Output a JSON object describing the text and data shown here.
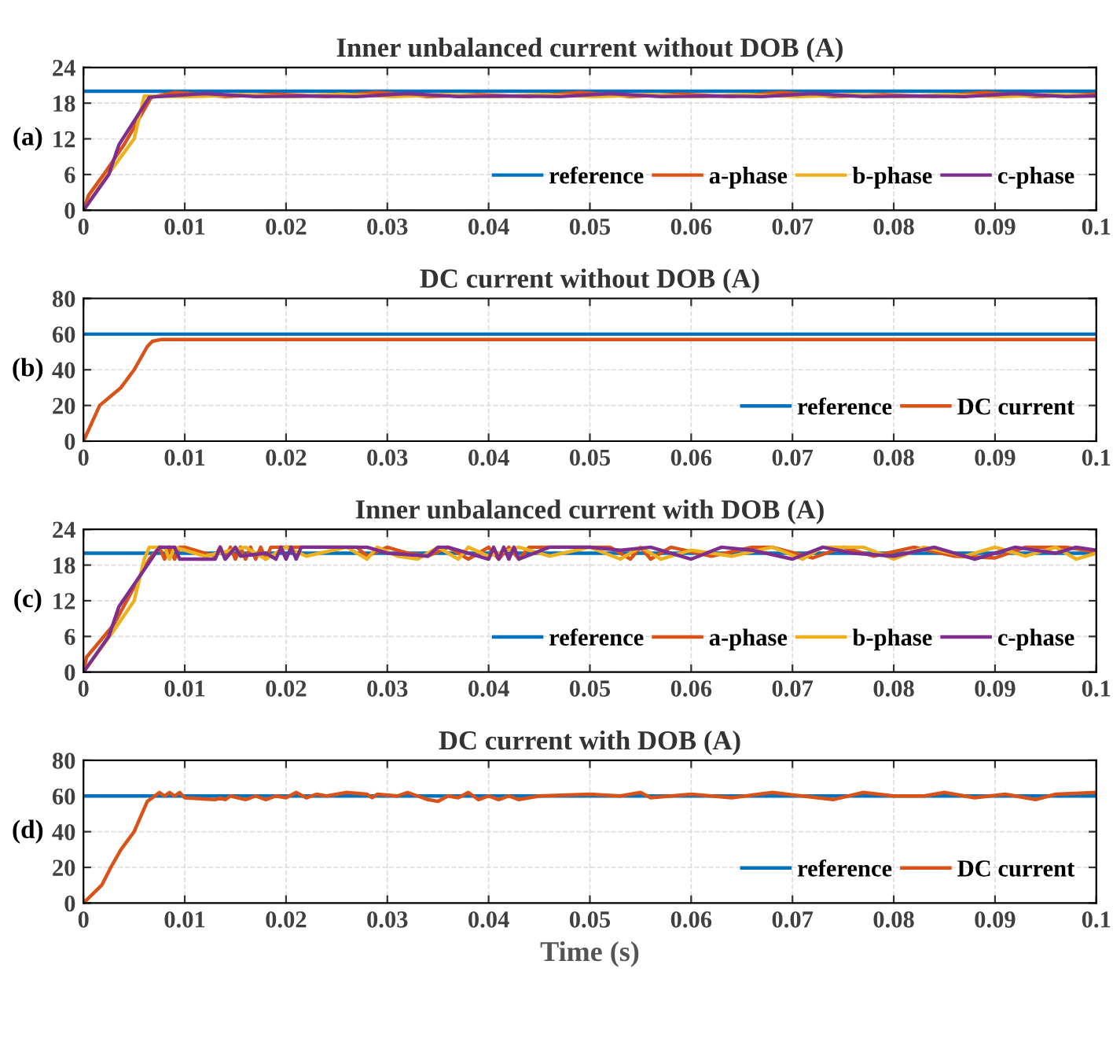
{
  "chart_data": [
    {
      "type": "line",
      "title": "Inner unbalanced current without DOB (A)",
      "annotations": [
        "(a)"
      ],
      "xlim": [
        0,
        0.1
      ],
      "xticks": [
        0,
        0.01,
        0.02,
        0.03,
        0.04,
        0.05,
        0.06,
        0.07,
        0.08,
        0.09,
        0.1
      ],
      "ylim": [
        0,
        24
      ],
      "yticks": [
        0,
        6,
        12,
        18,
        24
      ],
      "grid": true,
      "legend": "bottom right",
      "series": [
        {
          "name": "reference",
          "color": "#0072bd",
          "x": [
            0,
            0.1
          ],
          "values": [
            20,
            20
          ]
        },
        {
          "name": "a-phase",
          "color": "#d95319",
          "x": [
            0,
            0.0005,
            0.002,
            0.004,
            0.0067,
            0.009,
            0.014,
            0.019,
            0.024,
            0.029,
            0.034,
            0.039,
            0.044,
            0.049,
            0.054,
            0.059,
            0.064,
            0.069,
            0.074,
            0.079,
            0.084,
            0.089,
            0.094,
            0.1
          ],
          "values": [
            0,
            2.5,
            6,
            11,
            19,
            19.8,
            19.1,
            19.5,
            19.1,
            19.8,
            19.1,
            19.4,
            19.1,
            19.8,
            19.1,
            19.5,
            19.1,
            19.8,
            19.1,
            19.4,
            19.1,
            19.8,
            19.1,
            19.5
          ]
        },
        {
          "name": "b-phase",
          "color": "#edb120",
          "x": [
            0,
            0.002,
            0.005,
            0.006,
            0.0105,
            0.0155,
            0.0205,
            0.0255,
            0.0305,
            0.0355,
            0.0405,
            0.0455,
            0.0505,
            0.0555,
            0.0605,
            0.0655,
            0.0705,
            0.0755,
            0.0805,
            0.0855,
            0.0905,
            0.0955,
            0.1
          ],
          "values": [
            0,
            5,
            12,
            19.2,
            19.1,
            19.4,
            19.1,
            19.5,
            19.1,
            19.4,
            19.1,
            19.4,
            19.1,
            19.4,
            19.1,
            19.4,
            19.1,
            19.4,
            19.1,
            19.4,
            19.1,
            19.4,
            19.2
          ]
        },
        {
          "name": "c-phase",
          "color": "#7e2f8e",
          "x": [
            0,
            0.0025,
            0.0035,
            0.0065,
            0.012,
            0.017,
            0.022,
            0.027,
            0.032,
            0.037,
            0.042,
            0.047,
            0.052,
            0.057,
            0.062,
            0.067,
            0.072,
            0.077,
            0.082,
            0.087,
            0.092,
            0.097,
            0.1
          ],
          "values": [
            0,
            6,
            11,
            19,
            19.6,
            19.1,
            19.2,
            19.1,
            19.6,
            19.1,
            19.2,
            19.1,
            19.6,
            19.1,
            19.2,
            19.1,
            19.6,
            19.1,
            19.2,
            19.1,
            19.6,
            19.1,
            19.2
          ]
        }
      ]
    },
    {
      "type": "line",
      "title": "DC current without DOB (A)",
      "annotations": [
        "(b)"
      ],
      "xlim": [
        0,
        0.1
      ],
      "xticks": [
        0,
        0.01,
        0.02,
        0.03,
        0.04,
        0.05,
        0.06,
        0.07,
        0.08,
        0.09,
        0.1
      ],
      "ylim": [
        0,
        80
      ],
      "yticks": [
        0,
        20,
        40,
        60,
        80
      ],
      "grid": true,
      "legend": "bottom right",
      "series": [
        {
          "name": "reference",
          "color": "#0072bd",
          "x": [
            0,
            0.1
          ],
          "values": [
            60,
            60
          ]
        },
        {
          "name": "DC current",
          "color": "#d95319",
          "x": [
            0,
            0.0016,
            0.0037,
            0.005,
            0.0063,
            0.0068,
            0.0077,
            0.015,
            0.02,
            0.03,
            0.04,
            0.05,
            0.06,
            0.07,
            0.08,
            0.09,
            0.1
          ],
          "values": [
            0,
            20,
            30,
            40,
            53,
            56,
            57,
            57,
            57,
            57,
            57,
            57,
            57,
            57,
            57,
            57,
            57
          ]
        }
      ]
    },
    {
      "type": "line",
      "title": "Inner unbalanced current with DOB (A)",
      "annotations": [
        "(c)"
      ],
      "xlim": [
        0,
        0.1
      ],
      "xticks": [
        0,
        0.01,
        0.02,
        0.03,
        0.04,
        0.05,
        0.06,
        0.07,
        0.08,
        0.09,
        0.1
      ],
      "ylim": [
        0,
        24
      ],
      "yticks": [
        0,
        6,
        12,
        18,
        24
      ],
      "grid": true,
      "legend": "bottom right",
      "series": [
        {
          "name": "reference",
          "color": "#0072bd",
          "x": [
            0,
            0.1
          ],
          "values": [
            20,
            20
          ]
        },
        {
          "name": "a-phase",
          "color": "#d95319",
          "x": [
            0,
            0.0003,
            0.003,
            0.0065,
            0.0075,
            0.008,
            0.0085,
            0.009,
            0.0095,
            0.01,
            0.013,
            0.0135,
            0.014,
            0.0145,
            0.015,
            0.0155,
            0.016,
            0.0165,
            0.017,
            0.0175,
            0.018,
            0.0185,
            0.02,
            0.021,
            0.025,
            0.027,
            0.028,
            0.03,
            0.032,
            0.034,
            0.036,
            0.038,
            0.04,
            0.041,
            0.042,
            0.043,
            0.044,
            0.048,
            0.052,
            0.054,
            0.055,
            0.056,
            0.058,
            0.062,
            0.066,
            0.068,
            0.072,
            0.075,
            0.078,
            0.082,
            0.086,
            0.09,
            0.093,
            0.097,
            0.1
          ],
          "values": [
            0,
            2.5,
            8,
            19,
            21,
            19,
            21,
            19,
            21,
            21,
            19.5,
            21,
            19,
            21,
            19,
            21,
            19,
            21,
            19,
            21,
            19,
            21,
            21,
            21,
            21,
            21,
            19.5,
            21,
            20,
            19.5,
            21,
            19,
            21,
            19,
            21,
            19,
            21,
            21,
            21,
            19,
            21,
            19,
            21,
            19.5,
            21,
            21,
            19.2,
            21,
            19.5,
            21,
            19.5,
            19.2,
            21,
            21,
            20.2
          ]
        },
        {
          "name": "b-phase",
          "color": "#edb120",
          "x": [
            0,
            0.003,
            0.005,
            0.006,
            0.0065,
            0.008,
            0.0085,
            0.009,
            0.012,
            0.016,
            0.018,
            0.02,
            0.022,
            0.026,
            0.028,
            0.029,
            0.031,
            0.033,
            0.035,
            0.037,
            0.038,
            0.04,
            0.043,
            0.046,
            0.05,
            0.053,
            0.055,
            0.057,
            0.06,
            0.064,
            0.068,
            0.071,
            0.073,
            0.077,
            0.08,
            0.083,
            0.087,
            0.09,
            0.093,
            0.096,
            0.098,
            0.1
          ],
          "values": [
            0,
            7,
            12,
            19,
            21,
            21,
            19,
            21,
            19.5,
            21,
            19,
            21,
            19.5,
            21,
            19,
            21,
            19.5,
            19,
            21,
            19,
            21,
            19.5,
            21,
            19.5,
            21,
            19,
            21,
            19,
            20.5,
            19.5,
            21,
            19,
            21,
            21,
            19,
            21,
            19.5,
            21,
            19.5,
            21,
            19,
            20
          ]
        },
        {
          "name": "c-phase",
          "color": "#7e2f8e",
          "x": [
            0,
            0.0025,
            0.0035,
            0.0075,
            0.009,
            0.0095,
            0.013,
            0.0135,
            0.014,
            0.015,
            0.0155,
            0.018,
            0.019,
            0.0195,
            0.02,
            0.0205,
            0.021,
            0.0215,
            0.022,
            0.023,
            0.026,
            0.028,
            0.03,
            0.034,
            0.035,
            0.036,
            0.04,
            0.0405,
            0.041,
            0.0415,
            0.042,
            0.0425,
            0.043,
            0.046,
            0.05,
            0.053,
            0.056,
            0.06,
            0.063,
            0.066,
            0.07,
            0.073,
            0.076,
            0.08,
            0.084,
            0.088,
            0.092,
            0.096,
            0.098,
            0.1
          ],
          "values": [
            0,
            6,
            11,
            21,
            21,
            19,
            19,
            21,
            19,
            21,
            19.5,
            20,
            19,
            21,
            19,
            21,
            19,
            21,
            21,
            21,
            21,
            21,
            20,
            19.5,
            21,
            21,
            19,
            21,
            19,
            21,
            19,
            21,
            19,
            21,
            21,
            20.5,
            21,
            19,
            21,
            20.5,
            19,
            21,
            20,
            19.5,
            21,
            19,
            21,
            20,
            21,
            20.5
          ]
        }
      ]
    },
    {
      "type": "line",
      "title": "DC current with DOB (A)",
      "xlabel": "Time (s)",
      "annotations": [
        "(d)"
      ],
      "xlim": [
        0,
        0.1
      ],
      "xticks": [
        0,
        0.01,
        0.02,
        0.03,
        0.04,
        0.05,
        0.06,
        0.07,
        0.08,
        0.09,
        0.1
      ],
      "ylim": [
        0,
        80
      ],
      "yticks": [
        0,
        20,
        40,
        60,
        80
      ],
      "grid": true,
      "legend": "bottom right",
      "series": [
        {
          "name": "reference",
          "color": "#0072bd",
          "x": [
            0,
            0.1
          ],
          "values": [
            60,
            60
          ]
        },
        {
          "name": "DC current",
          "color": "#d95319",
          "x": [
            0,
            0.0018,
            0.0027,
            0.0037,
            0.005,
            0.0063,
            0.0068,
            0.0075,
            0.008,
            0.0085,
            0.009,
            0.0095,
            0.01,
            0.013,
            0.0135,
            0.014,
            0.0145,
            0.016,
            0.017,
            0.018,
            0.019,
            0.02,
            0.021,
            0.022,
            0.023,
            0.024,
            0.026,
            0.028,
            0.0285,
            0.029,
            0.031,
            0.032,
            0.034,
            0.035,
            0.036,
            0.037,
            0.038,
            0.039,
            0.04,
            0.041,
            0.042,
            0.043,
            0.045,
            0.05,
            0.053,
            0.055,
            0.056,
            0.06,
            0.064,
            0.068,
            0.071,
            0.074,
            0.077,
            0.08,
            0.083,
            0.085,
            0.088,
            0.091,
            0.094,
            0.096,
            0.1
          ],
          "values": [
            0,
            10,
            20,
            30,
            40,
            57,
            59,
            62,
            60,
            62,
            60,
            62,
            59,
            58,
            59,
            58,
            60,
            58,
            60,
            58,
            60,
            59,
            62,
            59,
            61,
            60,
            62,
            61,
            59,
            61,
            60,
            62,
            58,
            57,
            60,
            59,
            62,
            58,
            60,
            58,
            60,
            58,
            60,
            61,
            60,
            62,
            59,
            61,
            59,
            62,
            60,
            58,
            62,
            60,
            60,
            62,
            59,
            61,
            58,
            61,
            62
          ]
        }
      ]
    }
  ]
}
